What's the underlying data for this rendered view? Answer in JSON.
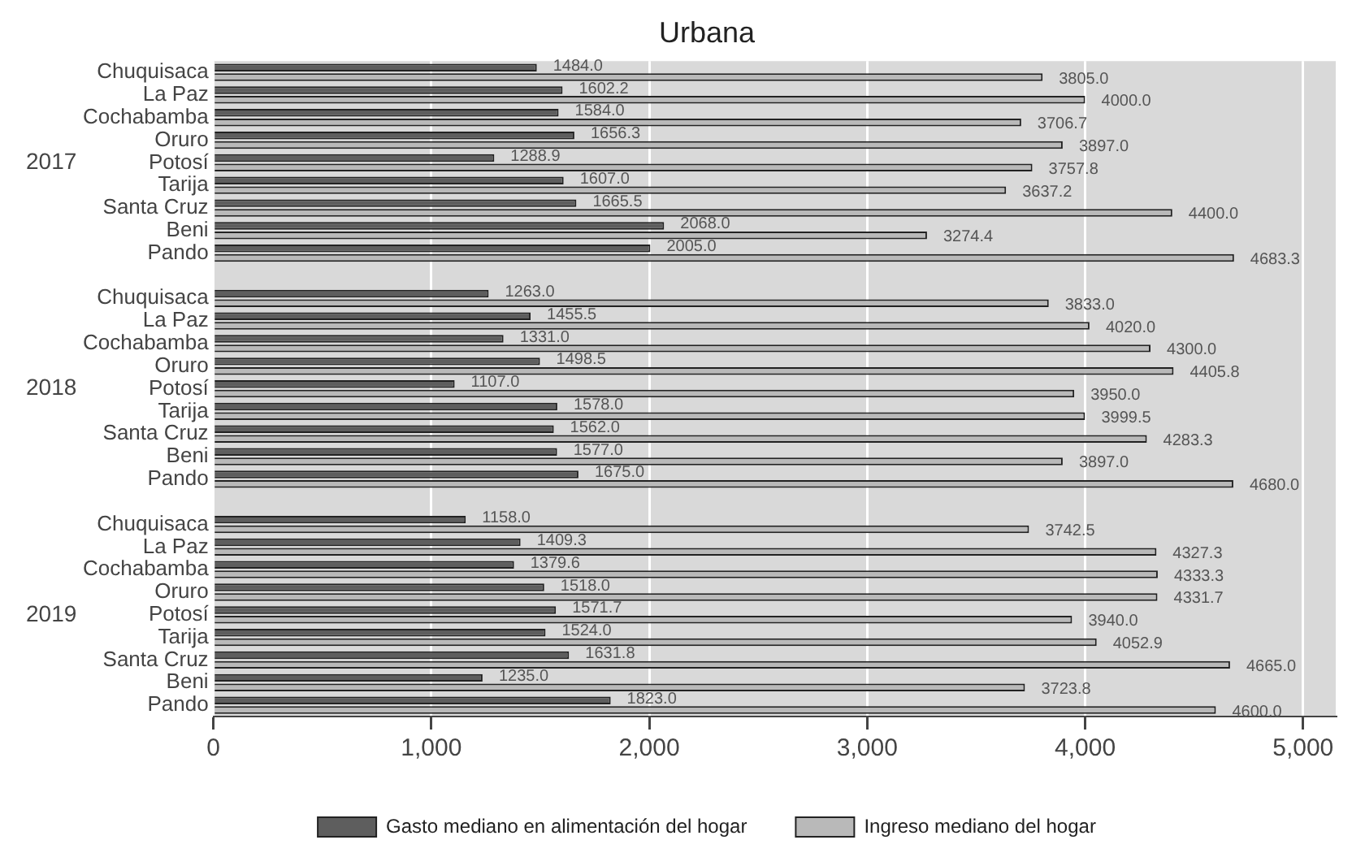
{
  "chart_data": {
    "type": "bar",
    "orientation": "horizontal",
    "title": "Urbana",
    "categories": [
      "Chuquisaca",
      "La Paz",
      "Cochabamba",
      "Oruro",
      "Potosí",
      "Tarija",
      "Santa Cruz",
      "Beni",
      "Pando",
      "Chuquisaca",
      "La Paz",
      "Cochabamba",
      "Oruro",
      "Potosí",
      "Tarija",
      "Santa Cruz",
      "Beni",
      "Pando",
      "Chuquisaca",
      "La Paz",
      "Cochabamba",
      "Oruro",
      "Potosí",
      "Tarija",
      "Santa Cruz",
      "Beni",
      "Pando"
    ],
    "annotations": [
      "2017",
      "2018",
      "2019"
    ],
    "series": [
      {
        "name": "Gasto mediano en alimentación del hogar",
        "color": "#5e5e5e",
        "values": [
          1484.0,
          1602.2,
          1584.0,
          1656.3,
          1288.9,
          1607.0,
          1665.5,
          2068.0,
          2005.0,
          1263.0,
          1455.5,
          1331.0,
          1498.5,
          1107.0,
          1578.0,
          1562.0,
          1577.0,
          1675.0,
          1158.0,
          1409.3,
          1379.6,
          1518.0,
          1571.7,
          1524.0,
          1631.8,
          1235.0,
          1823.0
        ],
        "value_labels": [
          "1484.0",
          "1602.2",
          "1584.0",
          "1656.3",
          "1288.9",
          "1607.0",
          "1665.5",
          "2068.0",
          "2005.0",
          "1263.0",
          "1455.5",
          "1331.0",
          "1498.5",
          "1107.0",
          "1578.0",
          "1562.0",
          "1577.0",
          "1675.0",
          "1158.0",
          "1409.3",
          "1379.6",
          "1518.0",
          "1571.7",
          "1524.0",
          "1631.8",
          "1235.0",
          "1823.0"
        ]
      },
      {
        "name": "Ingreso mediano del hogar",
        "color": "#b9b9b9",
        "values": [
          3805.0,
          4000.0,
          3706.7,
          3897.0,
          3757.8,
          3637.2,
          4400.0,
          3274.4,
          4683.3,
          3833.0,
          4020.0,
          4300.0,
          4405.8,
          3950.0,
          3999.5,
          4283.3,
          3897.0,
          4680.0,
          3742.5,
          4327.3,
          4333.3,
          4331.7,
          3940.0,
          4052.9,
          4665.0,
          3723.8,
          4600.0
        ],
        "value_labels": [
          "3805.0",
          "4000.0",
          "3706.7",
          "3897.0",
          "3757.8",
          "3637.2",
          "4400.0",
          "3274.4",
          "4683.3",
          "3833.0",
          "4020.0",
          "4300.0",
          "4405.8",
          "3950.0",
          "3999.5",
          "4283.3",
          "3897.0",
          "4680.0",
          "3742.5",
          "4327.3",
          "4333.3",
          "4331.7",
          "3940.0",
          "4052.9",
          "4665.0",
          "3723.8",
          "4600.0"
        ]
      }
    ],
    "xlim": [
      0,
      5150
    ],
    "xticks": [
      {
        "value": 0,
        "label": "0"
      },
      {
        "value": 1000,
        "label": "1,000"
      },
      {
        "value": 2000,
        "label": "2,000"
      },
      {
        "value": 3000,
        "label": "3,000"
      },
      {
        "value": 4000,
        "label": "4,000"
      },
      {
        "value": 5000,
        "label": "5,000"
      }
    ],
    "grid": "x",
    "legend": "bottom"
  }
}
